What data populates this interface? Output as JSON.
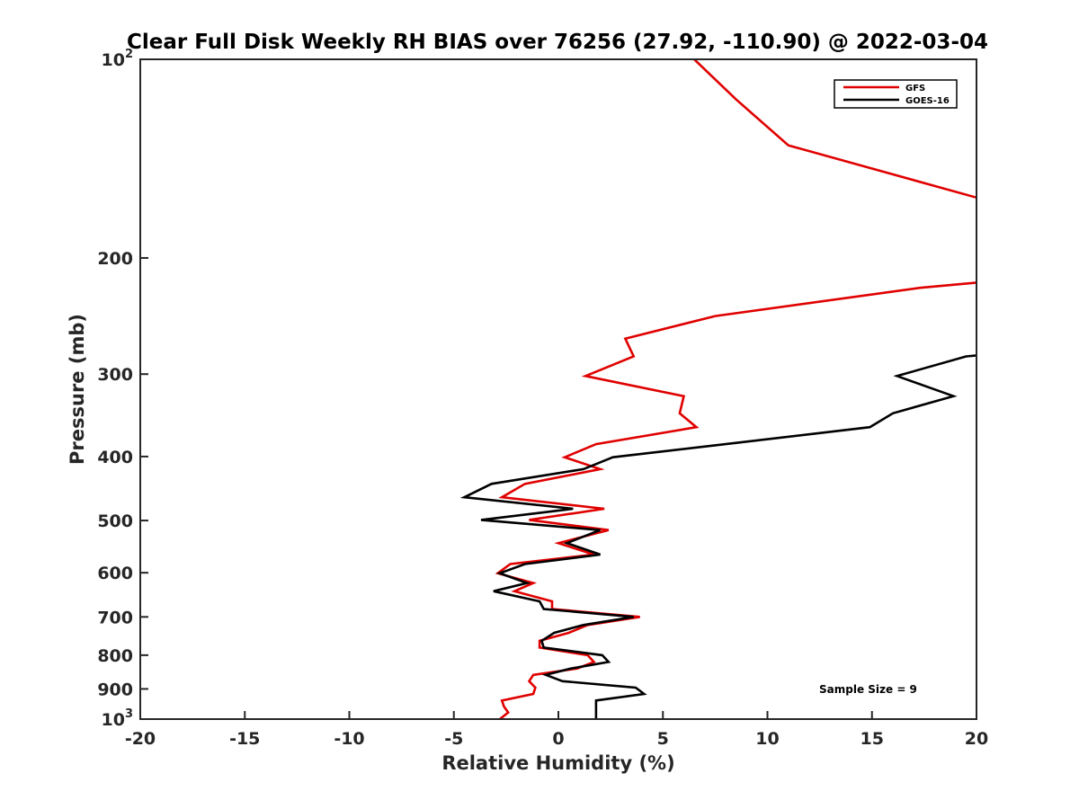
{
  "chart_data": {
    "type": "line",
    "title": "Clear Full Disk Weekly RH BIAS over 76256 (27.92, -110.90) @ 2022-03-04",
    "xlabel": "Relative Humidity (%)",
    "ylabel": "Pressure (mb)",
    "xlim": [
      -20,
      20
    ],
    "ylim": [
      100,
      1000
    ],
    "y_scale": "log",
    "y_reversed": true,
    "grid": false,
    "legend_position": "top-right",
    "x_ticks": [
      "-20",
      "-15",
      "-10",
      "-5",
      "0",
      "5",
      "10",
      "15",
      "20"
    ],
    "y_ticks": [
      {
        "value": 100,
        "base": "10",
        "exp": "2"
      },
      {
        "value": 200,
        "label": "200"
      },
      {
        "value": 300,
        "label": "300"
      },
      {
        "value": 400,
        "label": "400"
      },
      {
        "value": 500,
        "label": "500"
      },
      {
        "value": 600,
        "label": "600"
      },
      {
        "value": 700,
        "label": "700"
      },
      {
        "value": 800,
        "label": "800"
      },
      {
        "value": 900,
        "label": "900"
      },
      {
        "value": 1000,
        "base": "10",
        "exp": "3"
      }
    ],
    "annotation": "Sample Size = 9",
    "series": [
      {
        "name": "GFS",
        "color": "#e00000",
        "segments": [
          [
            [
              6.5,
              100
            ],
            [
              8.5,
              115
            ],
            [
              11,
              135
            ],
            [
              20,
              162
            ]
          ],
          [
            [
              20,
              218
            ],
            [
              17.3,
              222
            ],
            [
              7.5,
              245
            ],
            [
              3.2,
              265
            ],
            [
              3.6,
              282
            ],
            [
              1.3,
              302
            ],
            [
              6,
              324
            ],
            [
              5.8,
              344
            ],
            [
              6.6,
              361
            ],
            [
              1.8,
              383
            ],
            [
              0.3,
              401
            ],
            [
              2,
              418
            ],
            [
              -1.6,
              440
            ],
            [
              -2.7,
              461
            ],
            [
              2.2,
              480
            ],
            [
              -1.4,
              499
            ],
            [
              2.4,
              517
            ],
            [
              0,
              541
            ],
            [
              1.7,
              563
            ],
            [
              -2.3,
              582
            ],
            [
              -2.9,
              601
            ],
            [
              -1.2,
              622
            ],
            [
              -2.1,
              640
            ],
            [
              -0.3,
              663
            ],
            [
              -0.3,
              681
            ],
            [
              3.9,
              700
            ],
            [
              1.4,
              720
            ],
            [
              0.5,
              740
            ],
            [
              -0.9,
              761
            ],
            [
              -0.9,
              779
            ],
            [
              1.4,
              800
            ],
            [
              1.7,
              819
            ],
            [
              0.9,
              838
            ],
            [
              -1.2,
              857
            ],
            [
              -1.4,
              876
            ],
            [
              -1.1,
              896
            ],
            [
              -1.2,
              916
            ],
            [
              -2.7,
              937
            ],
            [
              -2.6,
              957
            ],
            [
              -2.4,
              977
            ],
            [
              -2.8,
              1000
            ]
          ]
        ]
      },
      {
        "name": "GOES-16",
        "color": "#000000",
        "segments": [
          [
            [
              20,
              281
            ],
            [
              19.5,
              282
            ],
            [
              16.2,
              302
            ],
            [
              18.9,
              324
            ],
            [
              16,
              344
            ],
            [
              14.9,
              361
            ],
            [
              8,
              383
            ],
            [
              2.6,
              401
            ],
            [
              1.2,
              418
            ],
            [
              -3.2,
              440
            ],
            [
              -4.5,
              461
            ],
            [
              0.7,
              480
            ],
            [
              -3.7,
              499
            ],
            [
              2,
              517
            ],
            [
              0.4,
              541
            ],
            [
              2,
              563
            ],
            [
              -1.6,
              582
            ],
            [
              -2.8,
              601
            ],
            [
              -1.5,
              622
            ],
            [
              -3.1,
              640
            ],
            [
              -0.9,
              663
            ],
            [
              -0.7,
              681
            ],
            [
              3.6,
              700
            ],
            [
              1.2,
              720
            ],
            [
              -0.2,
              740
            ],
            [
              -0.8,
              761
            ],
            [
              -0.7,
              779
            ],
            [
              2.1,
              800
            ],
            [
              2.4,
              819
            ],
            [
              0.6,
              838
            ],
            [
              -0.6,
              857
            ],
            [
              0.2,
              876
            ],
            [
              3.7,
              896
            ],
            [
              4.1,
              916
            ],
            [
              1.8,
              937
            ],
            [
              1.8,
              957
            ],
            [
              1.8,
              977
            ],
            [
              1.8,
              1000
            ]
          ]
        ]
      }
    ]
  }
}
